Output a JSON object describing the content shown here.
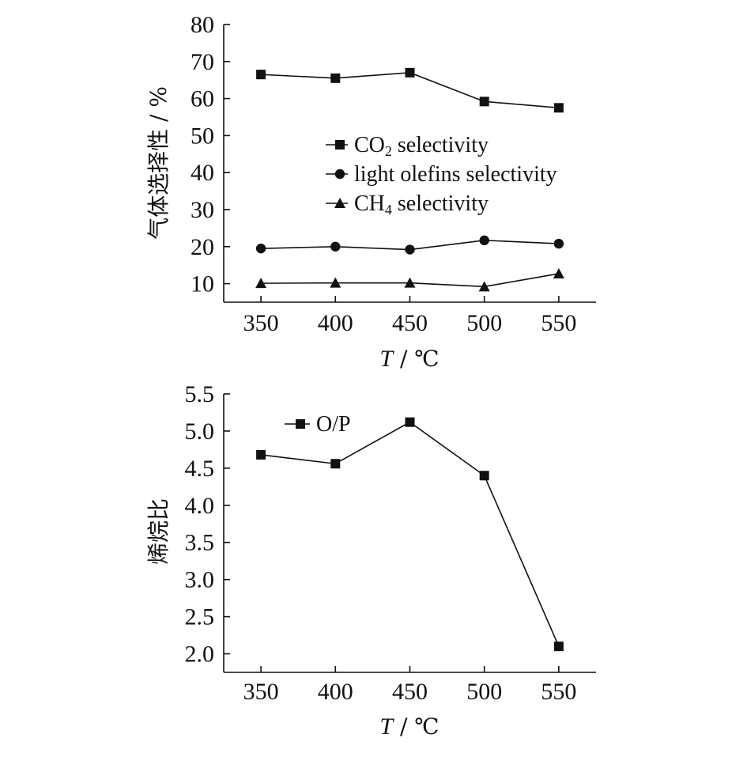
{
  "chart_data": [
    {
      "type": "line",
      "x": [
        350,
        400,
        450,
        500,
        550
      ],
      "xlim": [
        325,
        575
      ],
      "ylim": [
        5,
        80
      ],
      "xticks": [
        "350",
        "400",
        "450",
        "500",
        "550"
      ],
      "yticks": [
        "10",
        "20",
        "30",
        "40",
        "50",
        "60",
        "70",
        "80"
      ],
      "xlabel": {
        "var": "T",
        "unit": "℃",
        "text": "T / ℃"
      },
      "ylabel": "气体选择性 / %",
      "grid": false,
      "legend_position": "center",
      "series": [
        {
          "name": "CO₂ selectivity",
          "legend_base": "CO",
          "legend_sub": "2",
          "legend_rest": " selectivity",
          "marker": "square",
          "values": [
            66.5,
            65.5,
            67.0,
            59.2,
            57.5
          ]
        },
        {
          "name": "light olefins selectivity",
          "legend_base": "light olefins selectivity",
          "legend_sub": "",
          "legend_rest": "",
          "marker": "circle",
          "values": [
            19.5,
            20.0,
            19.2,
            21.7,
            20.8
          ]
        },
        {
          "name": "CH₄ selectivity",
          "legend_base": "CH",
          "legend_sub": "4",
          "legend_rest": " selectivity",
          "marker": "triangle",
          "values": [
            10.1,
            10.2,
            10.2,
            9.2,
            12.7
          ]
        }
      ]
    },
    {
      "type": "line",
      "x": [
        350,
        400,
        450,
        500,
        550
      ],
      "xlim": [
        325,
        575
      ],
      "ylim": [
        1.75,
        5.5
      ],
      "xticks": [
        "350",
        "400",
        "450",
        "500",
        "550"
      ],
      "yticks": [
        "2.0",
        "2.5",
        "3.0",
        "3.5",
        "4.0",
        "4.5",
        "5.0",
        "5.5"
      ],
      "xlabel": {
        "var": "T",
        "unit": "℃",
        "text": "T / ℃"
      },
      "ylabel": "烯烷比",
      "grid": false,
      "legend_position": "top-left",
      "series": [
        {
          "name": "O/P",
          "legend_base": "O/P",
          "legend_sub": "",
          "legend_rest": "",
          "marker": "square",
          "values": [
            4.68,
            4.56,
            5.12,
            4.4,
            2.1
          ]
        }
      ]
    }
  ]
}
